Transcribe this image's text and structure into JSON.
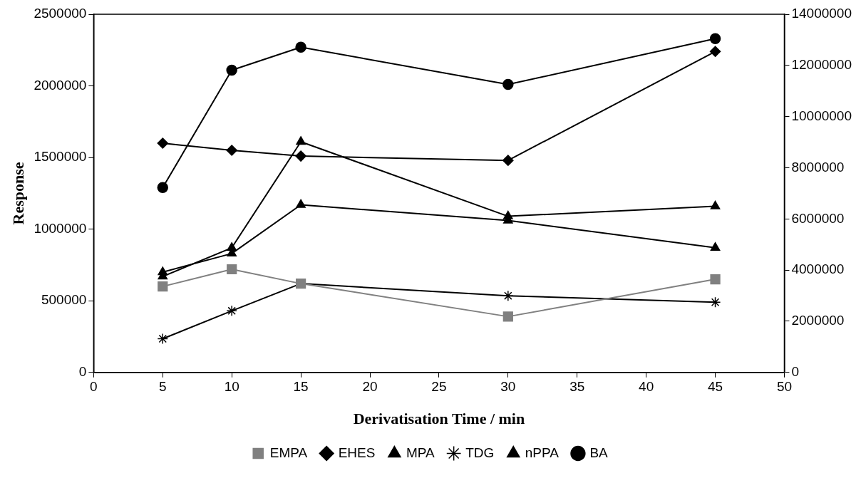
{
  "chart_data": {
    "type": "line",
    "xlabel": "Derivatisation Time / min",
    "ylabel": "Response",
    "x": [
      5,
      10,
      15,
      30,
      45
    ],
    "series": [
      {
        "name": "EHES",
        "color": "#000000",
        "marker": "diamond",
        "values": [
          1600000,
          1550000,
          1510000,
          1480000,
          2240000
        ]
      },
      {
        "name": "MPA",
        "color": "#000000",
        "marker": "triangle",
        "values": [
          670000,
          870000,
          1610000,
          1090000,
          1160000
        ]
      },
      {
        "name": "TDG",
        "color": "#000000",
        "marker": "cross",
        "values": [
          235000,
          430000,
          620000,
          535000,
          490000
        ]
      },
      {
        "name": "EMPA",
        "color": "#808080",
        "marker": "square",
        "values": [
          600000,
          720000,
          620000,
          390000,
          650000
        ]
      },
      {
        "name": "nPPA",
        "color": "#000000",
        "marker": "triangle",
        "values": [
          700000,
          830000,
          1170000,
          1060000,
          870000
        ]
      },
      {
        "name": "BA",
        "color": "#000000",
        "marker": "circle",
        "values": [
          1290000,
          2110000,
          2270000,
          2010000,
          2330000
        ]
      }
    ],
    "xlim": [
      0,
      50
    ],
    "xticks": [
      0,
      5,
      10,
      15,
      20,
      25,
      30,
      35,
      40,
      45,
      50
    ],
    "ylim": [
      0,
      2500000
    ],
    "yticks": [
      0,
      500000,
      1000000,
      1500000,
      2000000,
      2500000
    ],
    "y2lim": [
      0,
      14000000
    ],
    "y2ticks": [
      0,
      2000000,
      4000000,
      6000000,
      8000000,
      10000000,
      12000000,
      14000000
    ],
    "grid": false,
    "legend": "bottom",
    "line_style": "solid"
  }
}
